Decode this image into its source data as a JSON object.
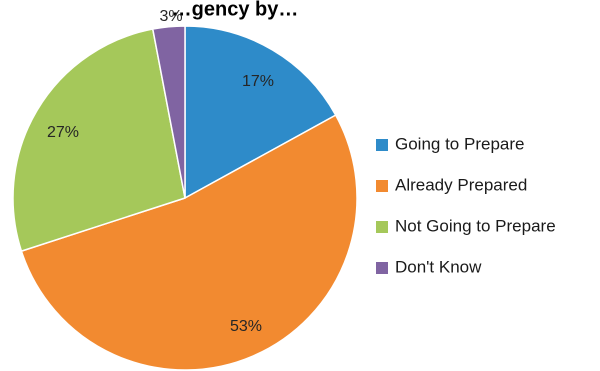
{
  "chart_data": {
    "type": "pie",
    "title": "…gency by…",
    "legend_position": "right",
    "slices": [
      {
        "label": "Going to Prepare",
        "value": 17,
        "value_label": "17%",
        "color": "#2E8BC9"
      },
      {
        "label": "Already Prepared",
        "value": 53,
        "value_label": "53%",
        "color": "#F28A30"
      },
      {
        "label": "Not Going to Prepare",
        "value": 27,
        "value_label": "27%",
        "color": "#A5C85A"
      },
      {
        "label": "Don't Know",
        "value": 3,
        "value_label": "3%",
        "color": "#8064A2"
      }
    ]
  }
}
